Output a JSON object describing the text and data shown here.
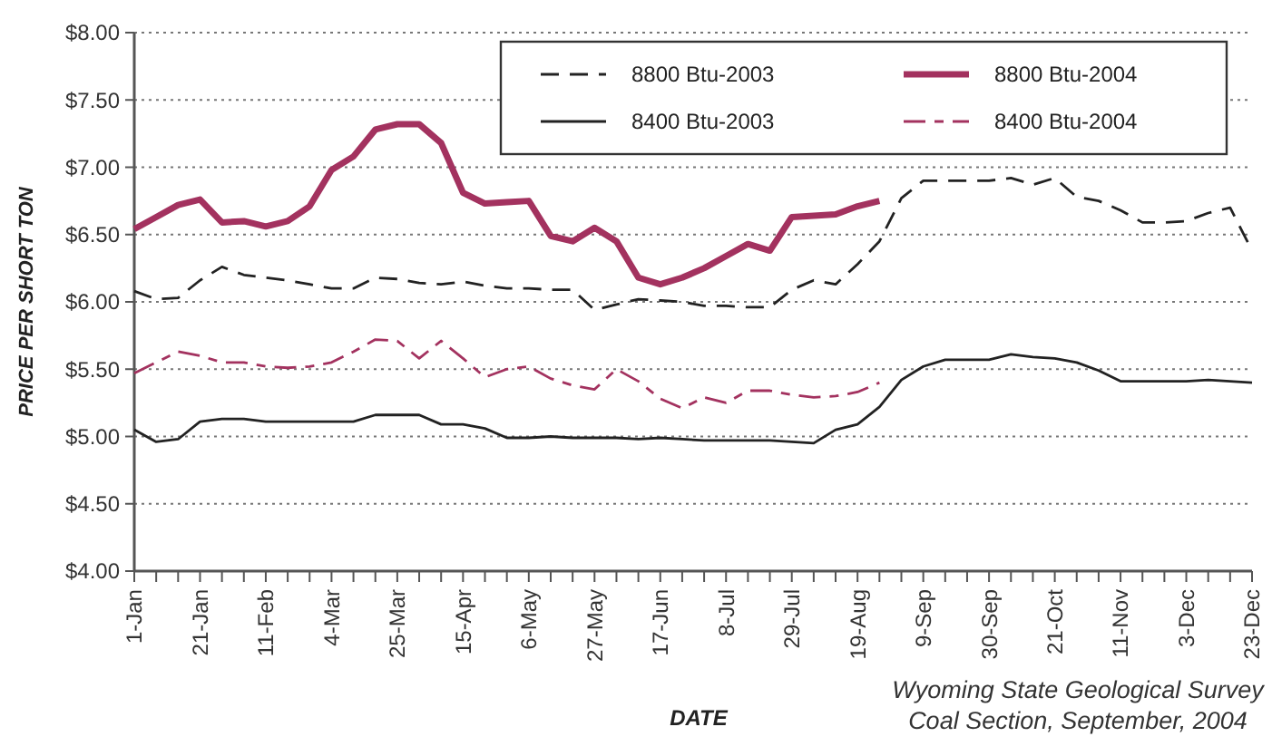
{
  "chart_data": {
    "type": "line",
    "xlabel": "DATE",
    "ylabel": "PRICE PER SHORT TON",
    "annotations": [
      "Wyoming State Geological Survey\nCoal Section, September, 2004"
    ],
    "categories": [
      "1-Jan",
      null,
      null,
      "21-Jan",
      null,
      null,
      "11-Feb",
      null,
      null,
      "4-Mar",
      null,
      null,
      "25-Mar",
      null,
      null,
      "15-Apr",
      null,
      null,
      "6-May",
      null,
      null,
      "27-May",
      null,
      null,
      "17-Jun",
      null,
      null,
      "8-Jul",
      null,
      null,
      "29-Jul",
      null,
      null,
      "19-Aug",
      null,
      null,
      "9-Sep",
      null,
      null,
      "30-Sep",
      null,
      null,
      "21-Oct",
      null,
      null,
      "11-Nov",
      null,
      null,
      "3-Dec",
      null,
      null,
      "23-Dec"
    ],
    "ylim": [
      4,
      8
    ],
    "yticks": [
      {
        "value": 4,
        "label": "$4.00"
      },
      {
        "value": 4.5,
        "label": "$4.50"
      },
      {
        "value": 5,
        "label": "$5.00"
      },
      {
        "value": 5.5,
        "label": "$5.50"
      },
      {
        "value": 6,
        "label": "$6.00"
      },
      {
        "value": 6.5,
        "label": "$6.50"
      },
      {
        "value": 7,
        "label": "$7.00"
      },
      {
        "value": 7.5,
        "label": "$7.50"
      },
      {
        "value": 8,
        "label": "$8.00"
      }
    ],
    "grid": "y",
    "legend": "top right",
    "marker": "none",
    "series": [
      {
        "name": "8800 Btu-2003",
        "color": "#222222",
        "line_style": "dashed",
        "values": [
          6.08,
          6.02,
          6.03,
          6.16,
          6.26,
          6.2,
          6.18,
          6.16,
          6.13,
          6.1,
          6.1,
          6.18,
          6.17,
          6.14,
          6.13,
          6.15,
          6.12,
          6.1,
          6.1,
          6.09,
          6.09,
          5.94,
          5.98,
          6.02,
          6.01,
          6,
          5.97,
          5.97,
          5.96,
          5.96,
          6.09,
          6.16,
          6.13,
          6.28,
          6.45,
          6.77,
          6.9,
          6.9,
          6.9,
          6.9,
          6.92,
          6.87,
          6.92,
          6.78,
          6.75,
          6.68,
          6.59,
          6.59,
          6.6,
          6.66,
          6.7,
          6.38
        ]
      },
      {
        "name": "8800 Btu-2004",
        "color": "#a3325f",
        "line_style": "solid",
        "values": [
          6.54,
          6.63,
          6.72,
          6.76,
          6.59,
          6.6,
          6.56,
          6.6,
          6.71,
          6.98,
          7.08,
          7.28,
          7.32,
          7.32,
          7.18,
          6.81,
          6.73,
          6.74,
          6.75,
          6.49,
          6.45,
          6.55,
          6.45,
          6.18,
          6.13,
          6.18,
          6.25,
          6.34,
          6.43,
          6.38,
          6.63,
          6.64,
          6.65,
          6.71,
          6.75,
          null,
          null,
          null,
          null,
          null,
          null,
          null,
          null,
          null,
          null,
          null,
          null,
          null,
          null,
          null,
          null,
          null
        ]
      },
      {
        "name": "8400 Btu-2003",
        "color": "#222222",
        "line_style": "solid",
        "values": [
          5.05,
          4.96,
          4.98,
          5.11,
          5.13,
          5.13,
          5.11,
          5.11,
          5.11,
          5.11,
          5.11,
          5.16,
          5.16,
          5.16,
          5.09,
          5.09,
          5.06,
          4.99,
          4.99,
          5,
          4.99,
          4.99,
          4.99,
          4.98,
          4.99,
          4.98,
          4.97,
          4.97,
          4.97,
          4.97,
          4.96,
          4.95,
          5.05,
          5.09,
          5.22,
          5.42,
          5.52,
          5.57,
          5.57,
          5.57,
          5.61,
          5.59,
          5.58,
          5.55,
          5.49,
          5.41,
          5.41,
          5.41,
          5.41,
          5.42,
          5.41,
          5.4
        ]
      },
      {
        "name": "8400 Btu-2004",
        "color": "#a3325f",
        "line_style": "dashed",
        "values": [
          5.47,
          5.55,
          5.63,
          5.6,
          5.55,
          5.55,
          5.52,
          5.51,
          5.52,
          5.55,
          5.63,
          5.72,
          5.71,
          5.58,
          5.71,
          5.58,
          5.44,
          5.5,
          5.52,
          5.43,
          5.38,
          5.35,
          5.5,
          5.41,
          5.28,
          5.21,
          5.29,
          5.25,
          5.34,
          5.34,
          5.31,
          5.29,
          5.3,
          5.33,
          5.4,
          null,
          null,
          null,
          null,
          null,
          null,
          null,
          null,
          null,
          null,
          null,
          null,
          null,
          null,
          null,
          null,
          null
        ]
      }
    ]
  }
}
